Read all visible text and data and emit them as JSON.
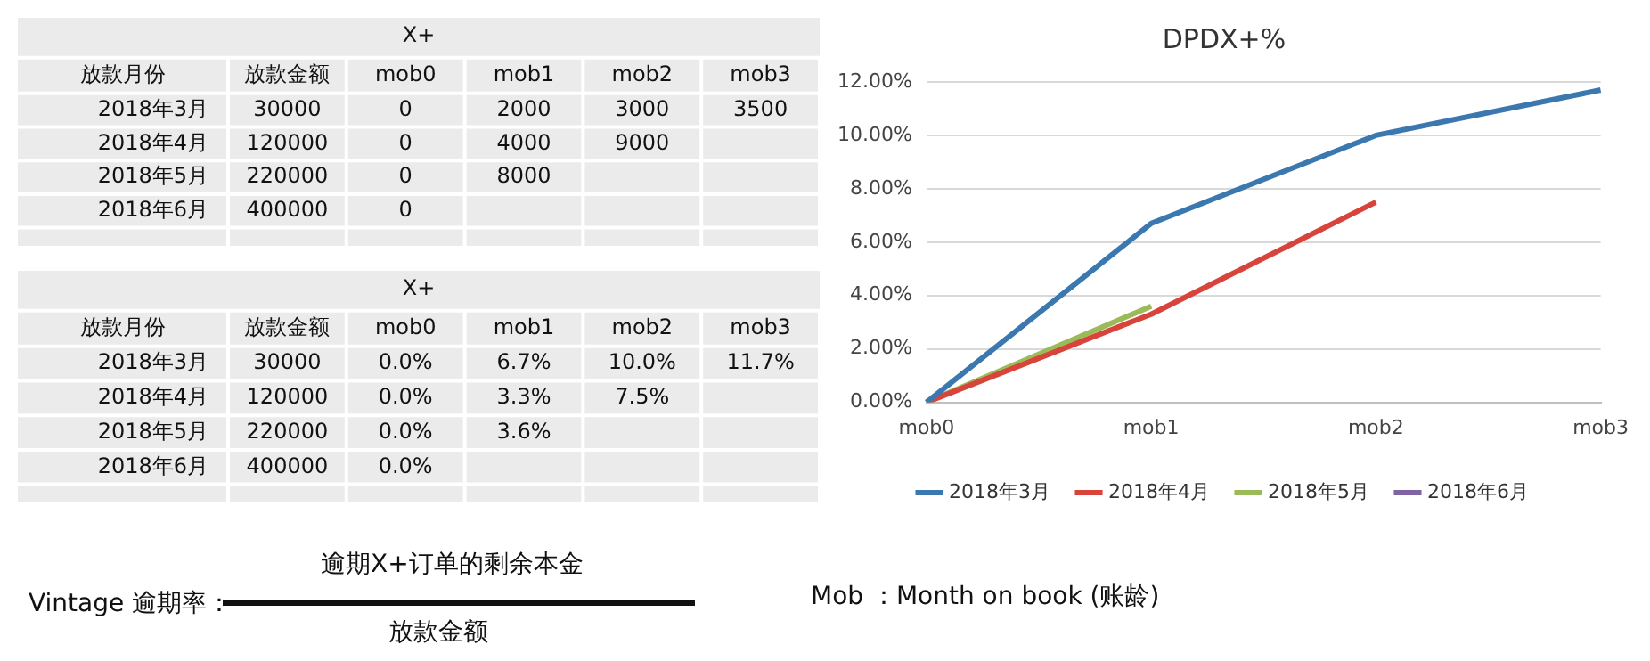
{
  "chart_data": [
    {
      "type": "heatmap",
      "title": "X+",
      "ylabel": "放款月份",
      "categories": [
        "放款金额",
        "mob0",
        "mob1",
        "mob2",
        "mob3"
      ],
      "y_categories": [
        "2018年3月",
        "2018年4月",
        "2018年5月",
        "2018年6月"
      ],
      "cells": [
        [
          30000,
          0,
          2000,
          3000,
          3500
        ],
        [
          120000,
          0,
          4000,
          9000,
          null
        ],
        [
          220000,
          0,
          8000,
          null,
          null
        ],
        [
          400000,
          0,
          null,
          null,
          null
        ]
      ],
      "cell_labels": [
        [
          "30000",
          "0",
          "2000",
          "3000",
          "3500"
        ],
        [
          "120000",
          "0",
          "4000",
          "9000",
          null
        ],
        [
          "220000",
          "0",
          "8000",
          null,
          null
        ],
        [
          "400000",
          "0",
          null,
          null,
          null
        ]
      ]
    },
    {
      "type": "heatmap",
      "title": "X+",
      "ylabel": "放款月份",
      "categories": [
        "放款金额",
        "mob0",
        "mob1",
        "mob2",
        "mob3"
      ],
      "y_categories": [
        "2018年3月",
        "2018年4月",
        "2018年5月",
        "2018年6月"
      ],
      "cells": [
        [
          30000,
          0.0,
          6.7,
          10.0,
          11.7
        ],
        [
          120000,
          0.0,
          3.3,
          7.5,
          null
        ],
        [
          220000,
          0.0,
          3.6,
          null,
          null
        ],
        [
          400000,
          0.0,
          null,
          null,
          null
        ]
      ],
      "cell_labels": [
        [
          "30000",
          "0.0%",
          "6.7%",
          "10.0%",
          "11.7%"
        ],
        [
          "120000",
          "0.0%",
          "3.3%",
          "7.5%",
          null
        ],
        [
          "220000",
          "0.0%",
          "3.6%",
          null,
          null
        ],
        [
          "400000",
          "0.0%",
          null,
          null,
          null
        ]
      ]
    },
    {
      "type": "line",
      "title": "DPDX+%",
      "categories": [
        "mob0",
        "mob1",
        "mob2",
        "mob3"
      ],
      "series": [
        {
          "name": "2018年3月",
          "color": "#3b78b0",
          "values": [
            0,
            6.7,
            10.0,
            11.7
          ]
        },
        {
          "name": "2018年4月",
          "color": "#d8433b",
          "values": [
            0,
            3.3,
            7.5,
            null
          ]
        },
        {
          "name": "2018年5月",
          "color": "#9bbb59",
          "values": [
            0,
            3.6,
            null,
            null
          ]
        },
        {
          "name": "2018年6月",
          "color": "#8064a2",
          "values": [
            null,
            null,
            null,
            null
          ]
        }
      ],
      "ylim": [
        0,
        12
      ],
      "yticks": [
        {
          "value": 0,
          "label": "0.00%"
        },
        {
          "value": 2,
          "label": "2.00%"
        },
        {
          "value": 4,
          "label": "4.00%"
        },
        {
          "value": 6,
          "label": "6.00%"
        },
        {
          "value": 8,
          "label": "8.00%"
        },
        {
          "value": 10,
          "label": "10.00%"
        },
        {
          "value": 12,
          "label": "12.00%"
        }
      ],
      "grid": "y",
      "legend": "bottom",
      "marker": "none",
      "line_style": "solid"
    },
    {
      "type": "other",
      "annotations": [
        "Vintage 逾期率：",
        "逾期X+订单的剩余本金",
        "放款金额",
        "Mob ：Month on book (账龄)"
      ]
    }
  ]
}
